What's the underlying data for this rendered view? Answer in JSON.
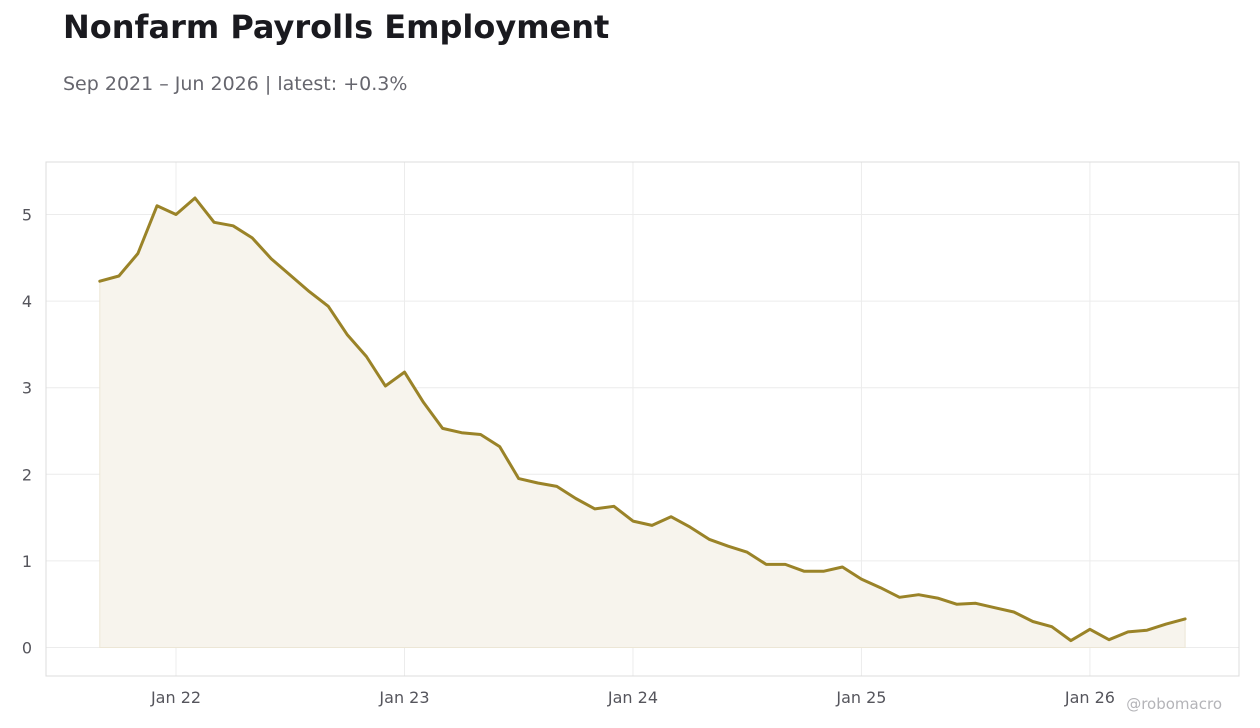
{
  "header": {
    "title": "Nonfarm Payrolls Employment",
    "subtitle": "Sep 2021 – Jun 2026 | latest: +0.3%"
  },
  "watermark": "@robomacro",
  "colors": {
    "line": "#9a8328",
    "fill": "#f7f4ed",
    "grid": "#ececec",
    "frame": "#dcdcdc"
  },
  "chart_data": {
    "type": "area",
    "ylim": [
      -0.35,
      5.6
    ],
    "yticks": [
      0,
      1,
      2,
      3,
      4,
      5
    ],
    "xticks": [
      {
        "label": "Jan 22",
        "date": "2022-01"
      },
      {
        "label": "Jan 23",
        "date": "2023-01"
      },
      {
        "label": "Jan 24",
        "date": "2024-01"
      },
      {
        "label": "Jan 25",
        "date": "2025-01"
      },
      {
        "label": "Jan 26",
        "date": "2026-01"
      }
    ],
    "grid": true,
    "series": [
      {
        "points": [
          [
            "2021-09",
            4.23
          ],
          [
            "2021-10",
            4.29
          ],
          [
            "2021-11",
            4.55
          ],
          [
            "2021-12",
            5.1
          ],
          [
            "2022-01",
            5.0
          ],
          [
            "2022-02",
            5.19
          ],
          [
            "2022-03",
            4.91
          ],
          [
            "2022-04",
            4.87
          ],
          [
            "2022-05",
            4.73
          ],
          [
            "2022-06",
            4.49
          ],
          [
            "2022-07",
            4.3
          ],
          [
            "2022-08",
            4.11
          ],
          [
            "2022-09",
            3.94
          ],
          [
            "2022-10",
            3.61
          ],
          [
            "2022-11",
            3.36
          ],
          [
            "2022-12",
            3.02
          ],
          [
            "2023-01",
            3.18
          ],
          [
            "2023-02",
            2.83
          ],
          [
            "2023-03",
            2.53
          ],
          [
            "2023-04",
            2.48
          ],
          [
            "2023-05",
            2.46
          ],
          [
            "2023-06",
            2.32
          ],
          [
            "2023-07",
            1.95
          ],
          [
            "2023-08",
            1.9
          ],
          [
            "2023-09",
            1.86
          ],
          [
            "2023-10",
            1.72
          ],
          [
            "2023-11",
            1.6
          ],
          [
            "2023-12",
            1.63
          ],
          [
            "2024-01",
            1.46
          ],
          [
            "2024-02",
            1.41
          ],
          [
            "2024-03",
            1.51
          ],
          [
            "2024-04",
            1.39
          ],
          [
            "2024-05",
            1.25
          ],
          [
            "2024-06",
            1.17
          ],
          [
            "2024-07",
            1.1
          ],
          [
            "2024-08",
            0.96
          ],
          [
            "2024-09",
            0.96
          ],
          [
            "2024-10",
            0.88
          ],
          [
            "2024-11",
            0.88
          ],
          [
            "2024-12",
            0.93
          ],
          [
            "2025-01",
            0.79
          ],
          [
            "2025-02",
            0.69
          ],
          [
            "2025-03",
            0.58
          ],
          [
            "2025-04",
            0.61
          ],
          [
            "2025-05",
            0.57
          ],
          [
            "2025-06",
            0.5
          ],
          [
            "2025-07",
            0.51
          ],
          [
            "2025-08",
            0.46
          ],
          [
            "2025-09",
            0.41
          ],
          [
            "2025-10",
            0.3
          ],
          [
            "2025-11",
            0.24
          ],
          [
            "2025-12",
            0.08
          ],
          [
            "2026-01",
            0.21
          ],
          [
            "2026-02",
            0.09
          ],
          [
            "2026-03",
            0.18
          ],
          [
            "2026-04",
            0.2
          ],
          [
            "2026-05",
            0.27
          ],
          [
            "2026-06",
            0.33
          ]
        ]
      }
    ]
  }
}
